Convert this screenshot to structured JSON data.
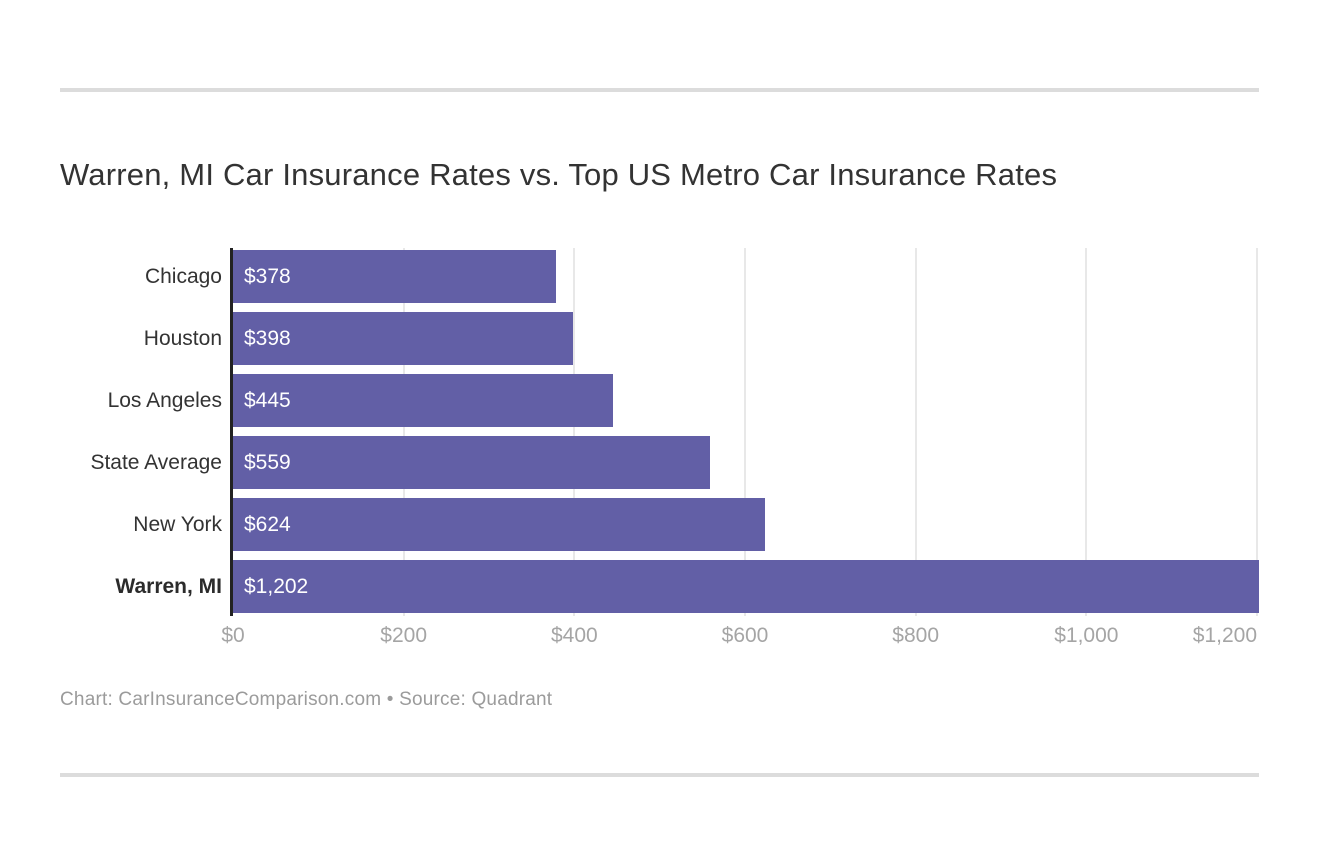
{
  "chart_data": {
    "type": "bar",
    "orientation": "horizontal",
    "title": "Warren, MI Car Insurance Rates vs. Top US Metro Car Insurance Rates",
    "categories": [
      "Chicago",
      "Houston",
      "Los Angeles",
      "State Average",
      "New York",
      "Warren, MI"
    ],
    "values": [
      378,
      398,
      445,
      559,
      624,
      1202
    ],
    "value_labels": [
      "$378",
      "$398",
      "$445",
      "$559",
      "$624",
      "$1,202"
    ],
    "highlight_category": "Warren, MI",
    "xlabel": "",
    "ylabel": "",
    "xlim": [
      0,
      1200
    ],
    "x_ticks": [
      0,
      200,
      400,
      600,
      800,
      1000,
      1200
    ],
    "x_tick_labels": [
      "$0",
      "$200",
      "$400",
      "$600",
      "$800",
      "$1,000",
      "$1,200"
    ],
    "grid": true,
    "legend": "none",
    "bar_color": "#625FA6",
    "axis_color": "#222222",
    "gridline_color": "#e8e8e8",
    "tick_label_color": "#a5a5a5"
  },
  "footer": {
    "text": "Chart: CarInsuranceComparison.com • Source: Quadrant"
  }
}
